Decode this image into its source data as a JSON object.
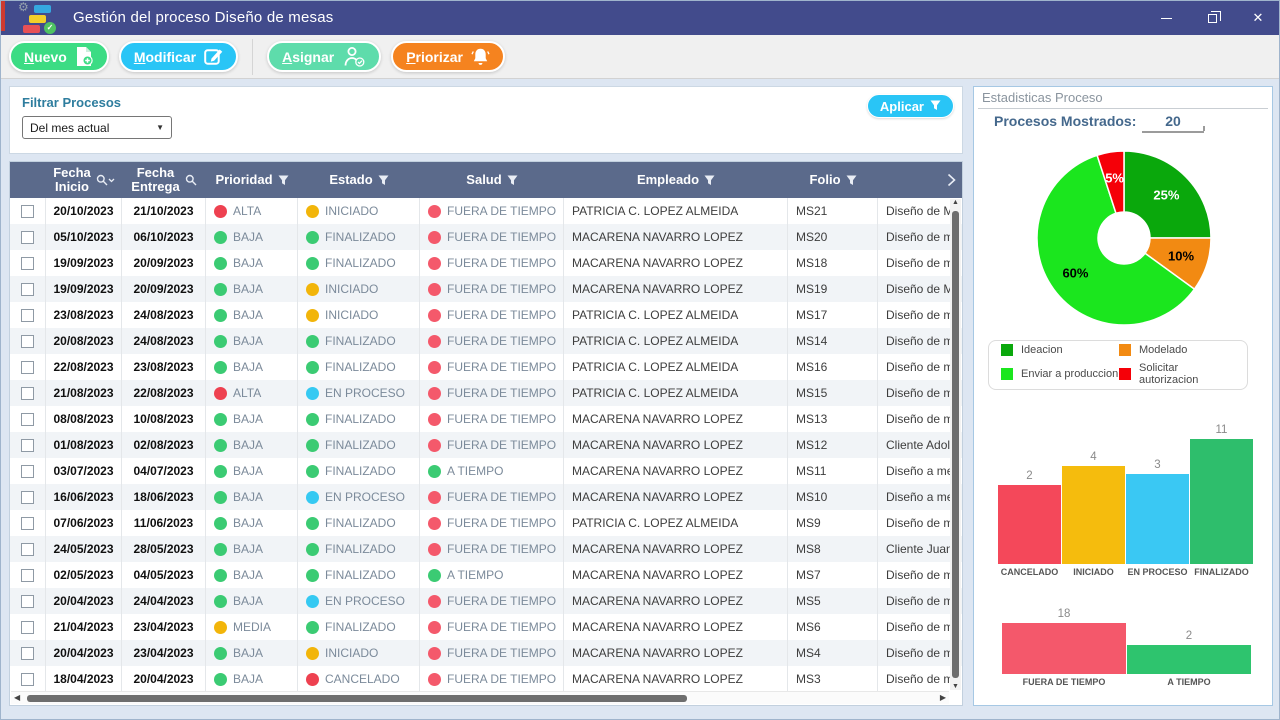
{
  "window": {
    "title": "Gestión del proceso Diseño de mesas",
    "controls": [
      "minimize",
      "restore",
      "close"
    ],
    "titlebar_color": "#424b8c"
  },
  "toolbar": {
    "buttons": [
      {
        "label": "Nuevo",
        "mnemonic": "N",
        "color": "#3cdc84",
        "icon": "file-plus",
        "divider_after": false
      },
      {
        "label": "Modificar",
        "mnemonic": "M",
        "color": "#29c5f6",
        "icon": "pencil-square",
        "divider_after": true
      },
      {
        "label": "Asignar",
        "mnemonic": "A",
        "color": "#5edcab",
        "icon": "person-check",
        "divider_after": false
      },
      {
        "label": "Priorizar",
        "mnemonic": "P",
        "color": "#f5831f",
        "icon": "bell",
        "divider_after": false
      }
    ]
  },
  "filter": {
    "label": "Filtrar Procesos",
    "value": "Del mes actual",
    "apply_label": "Aplicar"
  },
  "table": {
    "columns": [
      {
        "label": "",
        "icon": null
      },
      {
        "label": "Fecha\nInicio",
        "icon": "search-caret"
      },
      {
        "label": "Fecha\nEntrega",
        "icon": "search"
      },
      {
        "label": "Prioridad",
        "icon": "filter"
      },
      {
        "label": "Estado",
        "icon": "filter"
      },
      {
        "label": "Salud",
        "icon": "filter"
      },
      {
        "label": "Empleado",
        "icon": "filter"
      },
      {
        "label": "Folio",
        "icon": "filter"
      },
      {
        "label": "",
        "icon": "chevron-right"
      }
    ],
    "status_colors": {
      "ALTA": "#ee4150",
      "MEDIA": "#f2b50a",
      "BAJA": "#3bcb73",
      "INICIADO": "#f2b50a",
      "FINALIZADO": "#3bcb73",
      "EN PROCESO": "#35c9f2",
      "CANCELADO": "#ee4150",
      "FUERA DE TIEMPO": "#f4596b",
      "A TIEMPO": "#3bcb73"
    },
    "rows": [
      {
        "fecha_inicio": "20/10/2023",
        "fecha_entrega": "21/10/2023",
        "prioridad": "ALTA",
        "estado": "INICIADO",
        "salud": "FUERA DE TIEMPO",
        "empleado": "PATRICIA C. LOPEZ ALMEIDA",
        "folio": "MS21",
        "descripcion": "Diseño de M"
      },
      {
        "fecha_inicio": "05/10/2023",
        "fecha_entrega": "06/10/2023",
        "prioridad": "BAJA",
        "estado": "FINALIZADO",
        "salud": "FUERA DE TIEMPO",
        "empleado": "MACARENA NAVARRO LOPEZ",
        "folio": "MS20",
        "descripcion": "Diseño de m"
      },
      {
        "fecha_inicio": "19/09/2023",
        "fecha_entrega": "20/09/2023",
        "prioridad": "BAJA",
        "estado": "FINALIZADO",
        "salud": "FUERA DE TIEMPO",
        "empleado": "MACARENA NAVARRO LOPEZ",
        "folio": "MS18",
        "descripcion": "Diseño de m"
      },
      {
        "fecha_inicio": "19/09/2023",
        "fecha_entrega": "20/09/2023",
        "prioridad": "BAJA",
        "estado": "INICIADO",
        "salud": "FUERA DE TIEMPO",
        "empleado": "MACARENA NAVARRO LOPEZ",
        "folio": "MS19",
        "descripcion": "Diseño de M"
      },
      {
        "fecha_inicio": "23/08/2023",
        "fecha_entrega": "24/08/2023",
        "prioridad": "BAJA",
        "estado": "INICIADO",
        "salud": "FUERA DE TIEMPO",
        "empleado": "PATRICIA C. LOPEZ ALMEIDA",
        "folio": "MS17",
        "descripcion": "Diseño de m"
      },
      {
        "fecha_inicio": "20/08/2023",
        "fecha_entrega": "24/08/2023",
        "prioridad": "BAJA",
        "estado": "FINALIZADO",
        "salud": "FUERA DE TIEMPO",
        "empleado": "PATRICIA C. LOPEZ ALMEIDA",
        "folio": "MS14",
        "descripcion": "Diseño de m"
      },
      {
        "fecha_inicio": "22/08/2023",
        "fecha_entrega": "23/08/2023",
        "prioridad": "BAJA",
        "estado": "FINALIZADO",
        "salud": "FUERA DE TIEMPO",
        "empleado": "PATRICIA C. LOPEZ ALMEIDA",
        "folio": "MS16",
        "descripcion": "Diseño de m"
      },
      {
        "fecha_inicio": "21/08/2023",
        "fecha_entrega": "22/08/2023",
        "prioridad": "ALTA",
        "estado": "EN PROCESO",
        "salud": "FUERA DE TIEMPO",
        "empleado": "PATRICIA C. LOPEZ ALMEIDA",
        "folio": "MS15",
        "descripcion": "Diseño de m"
      },
      {
        "fecha_inicio": "08/08/2023",
        "fecha_entrega": "10/08/2023",
        "prioridad": "BAJA",
        "estado": "FINALIZADO",
        "salud": "FUERA DE TIEMPO",
        "empleado": "MACARENA NAVARRO LOPEZ",
        "folio": "MS13",
        "descripcion": "Diseño de m"
      },
      {
        "fecha_inicio": "01/08/2023",
        "fecha_entrega": "02/08/2023",
        "prioridad": "BAJA",
        "estado": "FINALIZADO",
        "salud": "FUERA DE TIEMPO",
        "empleado": "MACARENA NAVARRO LOPEZ",
        "folio": "MS12",
        "descripcion": "Cliente Adolf"
      },
      {
        "fecha_inicio": "03/07/2023",
        "fecha_entrega": "04/07/2023",
        "prioridad": "BAJA",
        "estado": "FINALIZADO",
        "salud": "A TIEMPO",
        "empleado": "MACARENA NAVARRO LOPEZ",
        "folio": "MS11",
        "descripcion": "Diseño a me"
      },
      {
        "fecha_inicio": "16/06/2023",
        "fecha_entrega": "18/06/2023",
        "prioridad": "BAJA",
        "estado": "EN PROCESO",
        "salud": "FUERA DE TIEMPO",
        "empleado": "MACARENA NAVARRO LOPEZ",
        "folio": "MS10",
        "descripcion": "Diseño a me"
      },
      {
        "fecha_inicio": "07/06/2023",
        "fecha_entrega": "11/06/2023",
        "prioridad": "BAJA",
        "estado": "FINALIZADO",
        "salud": "FUERA DE TIEMPO",
        "empleado": "PATRICIA C. LOPEZ ALMEIDA",
        "folio": "MS9",
        "descripcion": "Diseño de m"
      },
      {
        "fecha_inicio": "24/05/2023",
        "fecha_entrega": "28/05/2023",
        "prioridad": "BAJA",
        "estado": "FINALIZADO",
        "salud": "FUERA DE TIEMPO",
        "empleado": "MACARENA NAVARRO LOPEZ",
        "folio": "MS8",
        "descripcion": "Cliente Juan"
      },
      {
        "fecha_inicio": "02/05/2023",
        "fecha_entrega": "04/05/2023",
        "prioridad": "BAJA",
        "estado": "FINALIZADO",
        "salud": "A TIEMPO",
        "empleado": "MACARENA NAVARRO LOPEZ",
        "folio": "MS7",
        "descripcion": "Diseño de m"
      },
      {
        "fecha_inicio": "20/04/2023",
        "fecha_entrega": "24/04/2023",
        "prioridad": "BAJA",
        "estado": "EN PROCESO",
        "salud": "FUERA DE TIEMPO",
        "empleado": "MACARENA NAVARRO LOPEZ",
        "folio": "MS5",
        "descripcion": "Diseño de m"
      },
      {
        "fecha_inicio": "21/04/2023",
        "fecha_entrega": "23/04/2023",
        "prioridad": "MEDIA",
        "estado": "FINALIZADO",
        "salud": "FUERA DE TIEMPO",
        "empleado": "MACARENA NAVARRO LOPEZ",
        "folio": "MS6",
        "descripcion": "Diseño de m"
      },
      {
        "fecha_inicio": "20/04/2023",
        "fecha_entrega": "23/04/2023",
        "prioridad": "BAJA",
        "estado": "INICIADO",
        "salud": "FUERA DE TIEMPO",
        "empleado": "MACARENA NAVARRO LOPEZ",
        "folio": "MS4",
        "descripcion": "Diseño de m"
      },
      {
        "fecha_inicio": "18/04/2023",
        "fecha_entrega": "20/04/2023",
        "prioridad": "BAJA",
        "estado": "CANCELADO",
        "salud": "FUERA DE TIEMPO",
        "empleado": "MACARENA NAVARRO LOPEZ",
        "folio": "MS3",
        "descripcion": "Diseño de m"
      }
    ]
  },
  "stats": {
    "panel_title": "Estadisticas Proceso",
    "shown_label": "Procesos Mostrados:",
    "shown_value": "20"
  },
  "chart_data": [
    {
      "type": "pie",
      "donut": true,
      "legend_position": "below",
      "slices": [
        {
          "label": "Ideacion",
          "value": 25,
          "color": "#0aa80c",
          "label_color": "#ffffff"
        },
        {
          "label": "Modelado",
          "value": 10,
          "color": "#f28a12",
          "label_color": "#000000"
        },
        {
          "label": "Enviar a produccion",
          "value": 60,
          "color": "#1be61e",
          "label_color": "#000000"
        },
        {
          "label": "Solicitar autorizacion",
          "value": 5,
          "color": "#f50008",
          "label_color": "#ffffff"
        }
      ]
    },
    {
      "type": "bar",
      "categories": [
        "CANCELADO",
        "INICIADO",
        "EN PROCESO",
        "FINALIZADO"
      ],
      "values": [
        2,
        4,
        3,
        11
      ],
      "colors": [
        "#f4485a",
        "#f5bc0d",
        "#3ac8f3",
        "#2ebe6c"
      ],
      "value_labels": true,
      "grid": false
    },
    {
      "type": "bar",
      "categories": [
        "FUERA DE TIEMPO",
        "A TIEMPO"
      ],
      "values": [
        18,
        2
      ],
      "colors": [
        "#f4586b",
        "#2ec46e"
      ],
      "value_labels": true,
      "grid": false
    }
  ]
}
